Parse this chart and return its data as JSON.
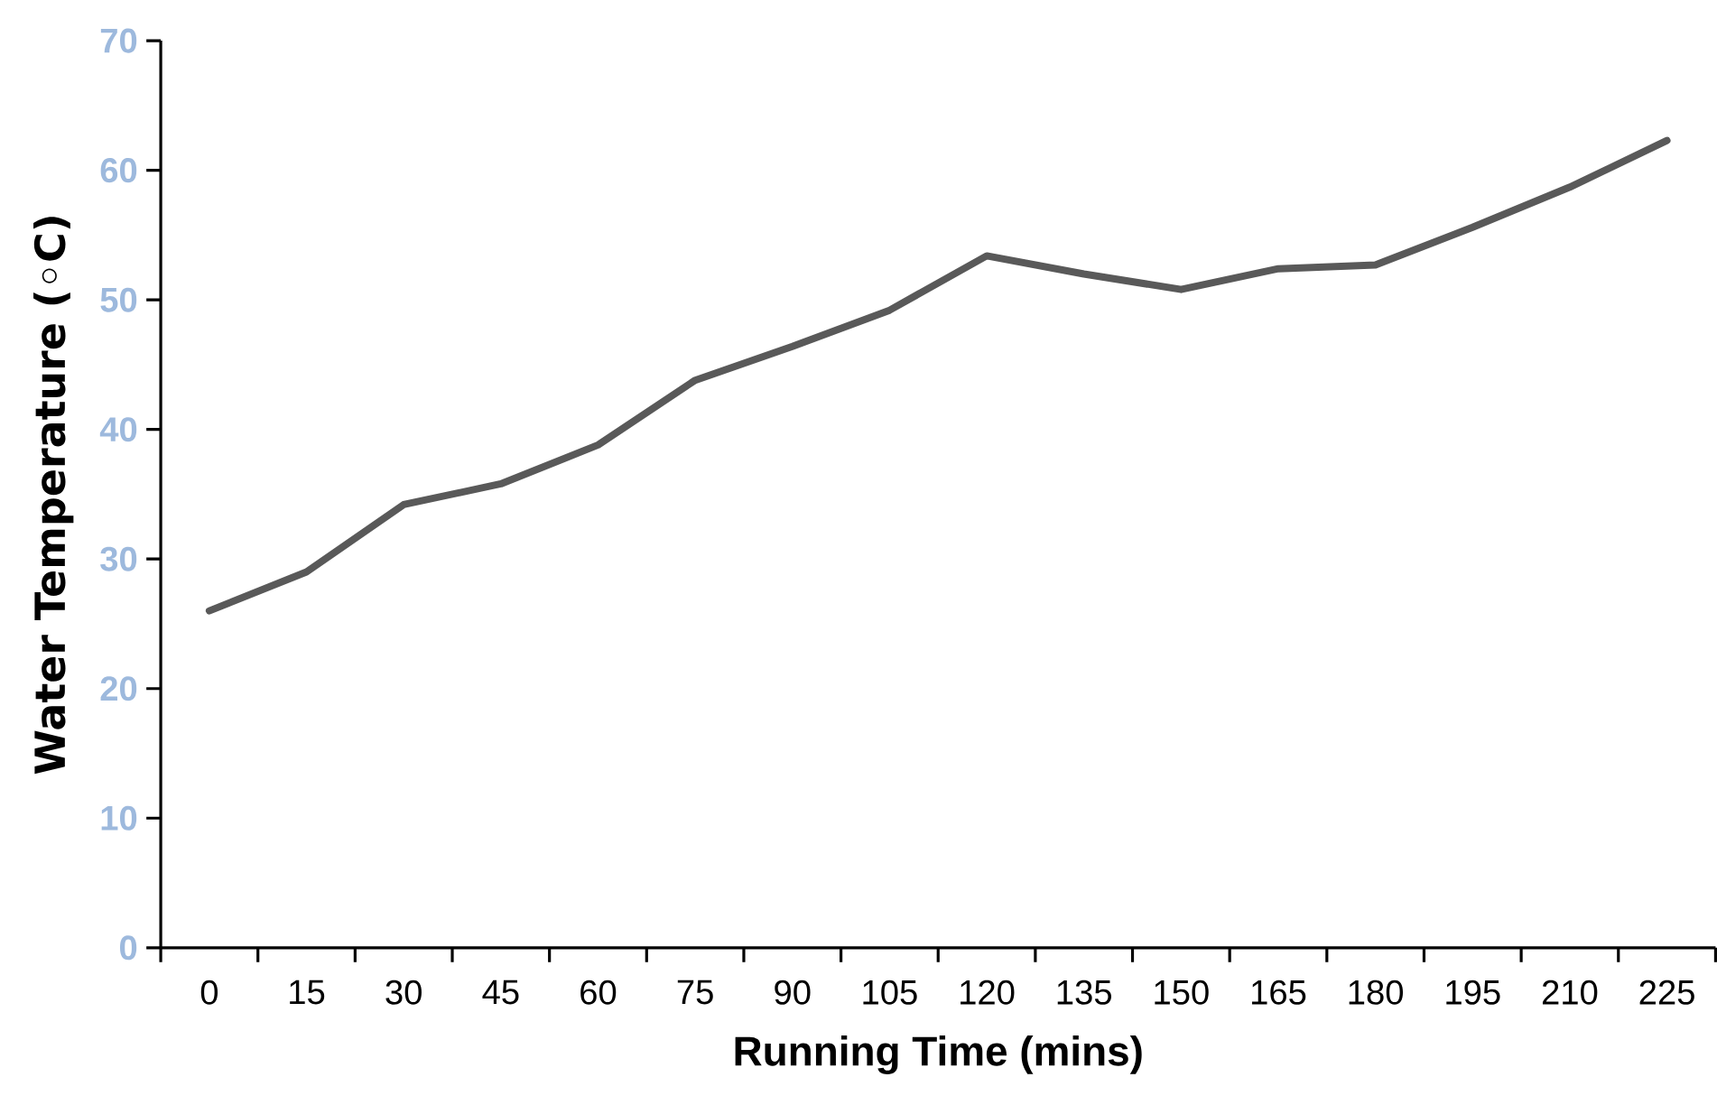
{
  "chart_data": {
    "type": "line",
    "xlabel": "Running Time (mins)",
    "ylabel": "Water Temperature (◦C)",
    "categories": [
      "0",
      "15",
      "30",
      "45",
      "60",
      "75",
      "90",
      "105",
      "120",
      "135",
      "150",
      "165",
      "180",
      "195",
      "210",
      "225"
    ],
    "series": [
      {
        "color": "#595959",
        "values": [
          26,
          29,
          34.2,
          35.8,
          38.8,
          43.8,
          46.4,
          49.2,
          53.4,
          52.0,
          50.8,
          52.4,
          52.7,
          55.6,
          58.7,
          62.3
        ]
      }
    ],
    "ylim": [
      0,
      70
    ],
    "yticks": [
      0,
      10,
      20,
      30,
      40,
      50,
      60,
      70
    ],
    "grid": false,
    "marker": "none",
    "line_style": "solid"
  }
}
